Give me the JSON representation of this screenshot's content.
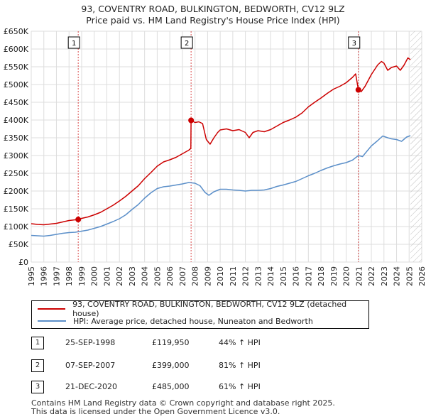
{
  "chart_data": {
    "type": "line",
    "title": "93, COVENTRY ROAD, BULKINGTON, BEDWORTH, CV12 9LZ",
    "subtitle": "Price paid vs. HM Land Registry's House Price Index (HPI)",
    "xlabel": "",
    "ylabel": "",
    "xlim": [
      1995,
      2026
    ],
    "ylim": [
      0,
      650000
    ],
    "x_ticks": [
      "1995",
      "1996",
      "1997",
      "1998",
      "1999",
      "2000",
      "2001",
      "2002",
      "2003",
      "2004",
      "2005",
      "2006",
      "2007",
      "2008",
      "2009",
      "2010",
      "2011",
      "2012",
      "2013",
      "2014",
      "2015",
      "2016",
      "2017",
      "2018",
      "2019",
      "2020",
      "2021",
      "2022",
      "2023",
      "2024",
      "2025",
      "2026"
    ],
    "y_ticks": [
      {
        "label": "£0",
        "value": 0
      },
      {
        "label": "£50K",
        "value": 50000
      },
      {
        "label": "£100K",
        "value": 100000
      },
      {
        "label": "£150K",
        "value": 150000
      },
      {
        "label": "£200K",
        "value": 200000
      },
      {
        "label": "£250K",
        "value": 250000
      },
      {
        "label": "£300K",
        "value": 300000
      },
      {
        "label": "£350K",
        "value": 350000
      },
      {
        "label": "£400K",
        "value": 400000
      },
      {
        "label": "£450K",
        "value": 450000
      },
      {
        "label": "£500K",
        "value": 500000
      },
      {
        "label": "£550K",
        "value": 550000
      },
      {
        "label": "£600K",
        "value": 600000
      },
      {
        "label": "£650K",
        "value": 650000
      }
    ],
    "grid": true,
    "future_hatch_from": 2025.1,
    "series": [
      {
        "name": "93, COVENTRY ROAD, BULKINGTON, BEDWORTH, CV12 9LZ (detached house)",
        "color": "#cc0000",
        "points": [
          [
            1995.0,
            108000
          ],
          [
            1995.5,
            106000
          ],
          [
            1996.0,
            105000
          ],
          [
            1996.5,
            107000
          ],
          [
            1997.0,
            109000
          ],
          [
            1997.5,
            113000
          ],
          [
            1998.0,
            117000
          ],
          [
            1998.5,
            119000
          ],
          [
            1998.73,
            119950
          ],
          [
            1999.0,
            123000
          ],
          [
            1999.5,
            127000
          ],
          [
            2000.0,
            133000
          ],
          [
            2000.5,
            140000
          ],
          [
            2001.0,
            150000
          ],
          [
            2001.5,
            160000
          ],
          [
            2002.0,
            172000
          ],
          [
            2002.5,
            185000
          ],
          [
            2003.0,
            200000
          ],
          [
            2003.5,
            215000
          ],
          [
            2004.0,
            235000
          ],
          [
            2004.5,
            252000
          ],
          [
            2005.0,
            270000
          ],
          [
            2005.5,
            282000
          ],
          [
            2006.0,
            288000
          ],
          [
            2006.5,
            295000
          ],
          [
            2007.0,
            305000
          ],
          [
            2007.5,
            315000
          ],
          [
            2007.67,
            320000
          ],
          [
            2007.69,
            399000
          ],
          [
            2008.0,
            393000
          ],
          [
            2008.3,
            395000
          ],
          [
            2008.6,
            390000
          ],
          [
            2008.9,
            345000
          ],
          [
            2009.2,
            332000
          ],
          [
            2009.5,
            350000
          ],
          [
            2009.8,
            365000
          ],
          [
            2010.0,
            372000
          ],
          [
            2010.5,
            375000
          ],
          [
            2011.0,
            370000
          ],
          [
            2011.5,
            373000
          ],
          [
            2012.0,
            365000
          ],
          [
            2012.3,
            350000
          ],
          [
            2012.6,
            365000
          ],
          [
            2013.0,
            370000
          ],
          [
            2013.5,
            367000
          ],
          [
            2014.0,
            373000
          ],
          [
            2014.5,
            383000
          ],
          [
            2015.0,
            393000
          ],
          [
            2015.5,
            400000
          ],
          [
            2016.0,
            408000
          ],
          [
            2016.5,
            420000
          ],
          [
            2017.0,
            437000
          ],
          [
            2017.5,
            450000
          ],
          [
            2018.0,
            462000
          ],
          [
            2018.5,
            475000
          ],
          [
            2019.0,
            487000
          ],
          [
            2019.5,
            495000
          ],
          [
            2020.0,
            505000
          ],
          [
            2020.5,
            520000
          ],
          [
            2020.75,
            530000
          ],
          [
            2020.97,
            485000
          ],
          [
            2021.2,
            480000
          ],
          [
            2021.5,
            495000
          ],
          [
            2022.0,
            528000
          ],
          [
            2022.5,
            555000
          ],
          [
            2022.8,
            565000
          ],
          [
            2023.0,
            560000
          ],
          [
            2023.3,
            540000
          ],
          [
            2023.6,
            548000
          ],
          [
            2024.0,
            552000
          ],
          [
            2024.3,
            540000
          ],
          [
            2024.6,
            555000
          ],
          [
            2024.9,
            575000
          ],
          [
            2025.1,
            570000
          ]
        ]
      },
      {
        "name": "HPI: Average price, detached house, Nuneaton and Bedworth",
        "color": "#5b8fc9",
        "points": [
          [
            1995.0,
            75000
          ],
          [
            1995.5,
            74000
          ],
          [
            1996.0,
            73000
          ],
          [
            1996.5,
            75000
          ],
          [
            1997.0,
            78000
          ],
          [
            1997.5,
            81000
          ],
          [
            1998.0,
            83000
          ],
          [
            1998.5,
            84000
          ],
          [
            1999.0,
            87000
          ],
          [
            1999.5,
            90000
          ],
          [
            2000.0,
            95000
          ],
          [
            2000.5,
            100000
          ],
          [
            2001.0,
            107000
          ],
          [
            2001.5,
            114000
          ],
          [
            2002.0,
            122000
          ],
          [
            2002.5,
            133000
          ],
          [
            2003.0,
            148000
          ],
          [
            2003.5,
            162000
          ],
          [
            2004.0,
            180000
          ],
          [
            2004.5,
            195000
          ],
          [
            2005.0,
            207000
          ],
          [
            2005.5,
            212000
          ],
          [
            2006.0,
            214000
          ],
          [
            2006.5,
            217000
          ],
          [
            2007.0,
            220000
          ],
          [
            2007.5,
            224000
          ],
          [
            2008.0,
            222000
          ],
          [
            2008.4,
            215000
          ],
          [
            2008.8,
            196000
          ],
          [
            2009.1,
            188000
          ],
          [
            2009.5,
            198000
          ],
          [
            2010.0,
            205000
          ],
          [
            2010.5,
            205000
          ],
          [
            2011.0,
            203000
          ],
          [
            2011.5,
            202000
          ],
          [
            2012.0,
            200000
          ],
          [
            2012.5,
            202000
          ],
          [
            2013.0,
            202000
          ],
          [
            2013.5,
            203000
          ],
          [
            2014.0,
            207000
          ],
          [
            2014.5,
            213000
          ],
          [
            2015.0,
            217000
          ],
          [
            2015.5,
            222000
          ],
          [
            2016.0,
            227000
          ],
          [
            2016.5,
            235000
          ],
          [
            2017.0,
            243000
          ],
          [
            2017.5,
            250000
          ],
          [
            2018.0,
            258000
          ],
          [
            2018.5,
            265000
          ],
          [
            2019.0,
            271000
          ],
          [
            2019.5,
            276000
          ],
          [
            2020.0,
            280000
          ],
          [
            2020.5,
            287000
          ],
          [
            2020.97,
            300000
          ],
          [
            2021.3,
            297000
          ],
          [
            2021.6,
            310000
          ],
          [
            2022.0,
            327000
          ],
          [
            2022.5,
            342000
          ],
          [
            2022.9,
            355000
          ],
          [
            2023.3,
            350000
          ],
          [
            2023.6,
            347000
          ],
          [
            2024.0,
            345000
          ],
          [
            2024.4,
            340000
          ],
          [
            2024.8,
            352000
          ],
          [
            2025.1,
            356000
          ]
        ]
      }
    ],
    "markers": [
      {
        "label": "1",
        "x": 1998.73,
        "y": 119950
      },
      {
        "label": "2",
        "x": 2007.69,
        "y": 399000
      },
      {
        "label": "3",
        "x": 2020.97,
        "y": 485000
      }
    ]
  },
  "legend": {
    "items": [
      {
        "label": "93, COVENTRY ROAD, BULKINGTON, BEDWORTH, CV12 9LZ (detached house)",
        "color": "#cc0000"
      },
      {
        "label": "HPI: Average price, detached house, Nuneaton and Bedworth",
        "color": "#5b8fc9"
      }
    ]
  },
  "sales": [
    {
      "num": "1",
      "date": "25-SEP-1998",
      "price": "£119,950",
      "hpi": "44% ↑ HPI"
    },
    {
      "num": "2",
      "date": "07-SEP-2007",
      "price": "£399,000",
      "hpi": "81% ↑ HPI"
    },
    {
      "num": "3",
      "date": "21-DEC-2020",
      "price": "£485,000",
      "hpi": "61% ↑ HPI"
    }
  ],
  "footer": {
    "line1": "Contains HM Land Registry data © Crown copyright and database right 2025.",
    "line2": "This data is licensed under the Open Government Licence v3.0."
  }
}
